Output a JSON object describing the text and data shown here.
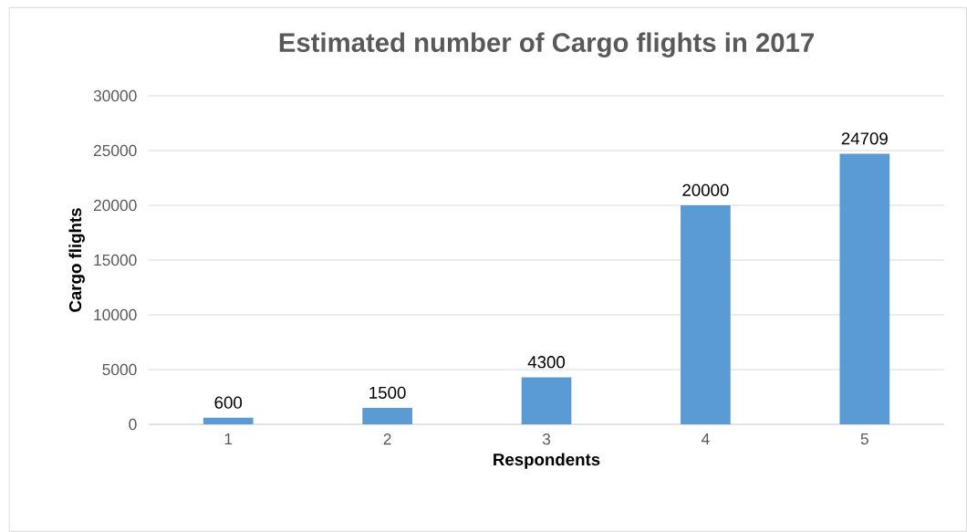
{
  "chart_data": {
    "type": "bar",
    "title": "Estimated number of Cargo flights in 2017",
    "xlabel": "Respondents",
    "ylabel": "Cargo flights",
    "categories": [
      "1",
      "2",
      "3",
      "4",
      "5"
    ],
    "values": [
      600,
      1500,
      4300,
      20000,
      24709
    ],
    "color": "#5b9bd5",
    "data_labels": true,
    "grid": "y",
    "ylim": [
      0,
      30000
    ],
    "yticks": [
      0,
      5000,
      10000,
      15000,
      20000,
      25000,
      30000
    ]
  }
}
